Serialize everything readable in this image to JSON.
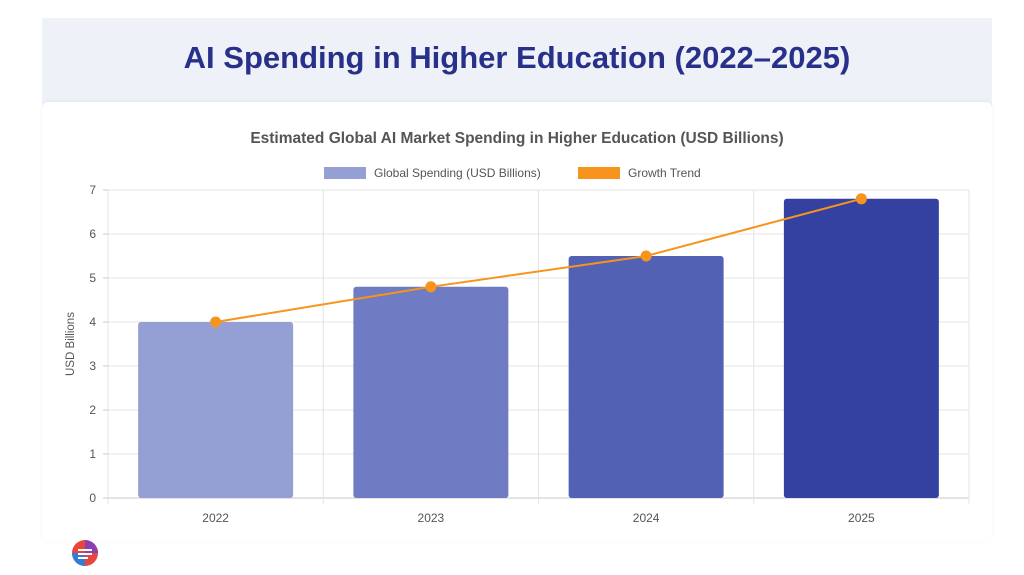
{
  "slide": {
    "title": "AI Spending in Higher Education (2022–2025)"
  },
  "chart_data": {
    "type": "bar",
    "title": "Estimated Global AI Market Spending in Higher Education (USD Billions)",
    "xlabel": "",
    "ylabel": "USD Billions",
    "ylim": [
      0,
      7
    ],
    "yticks": [
      0,
      1,
      2,
      3,
      4,
      5,
      6,
      7
    ],
    "categories": [
      "2022",
      "2023",
      "2024",
      "2025"
    ],
    "series": [
      {
        "name": "Global Spending (USD Billions)",
        "kind": "bar",
        "values": [
          4.0,
          4.8,
          5.5,
          6.8
        ],
        "colors": [
          "#949fd4",
          "#6f7bc2",
          "#5261b4",
          "#3541a0"
        ]
      },
      {
        "name": "Growth Trend",
        "kind": "line",
        "values": [
          4.0,
          4.8,
          5.5,
          6.8
        ],
        "color": "#f7941d"
      }
    ],
    "grid": true,
    "legend_position": "top-center"
  },
  "logo": {
    "icon": "brand-logo-icon"
  }
}
